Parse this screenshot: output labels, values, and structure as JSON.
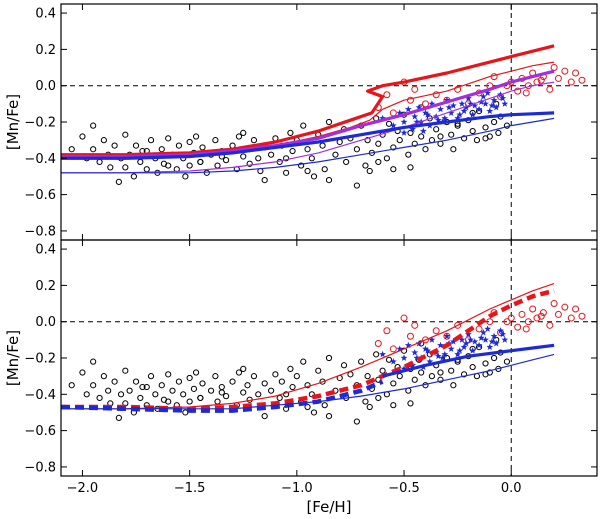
{
  "chart_data": [
    {
      "type": "scatter",
      "panel": "top",
      "ylabel": "[Mn/Fe]",
      "xlim": [
        -2.1,
        0.4
      ],
      "ylim": [
        -0.85,
        0.45
      ],
      "yticks": [
        0.4,
        0.2,
        0.0,
        -0.2,
        -0.4,
        -0.6,
        -0.8
      ],
      "ytick_labels": [
        "0.4",
        "0.2",
        "0.0",
        "−0.2",
        "−0.4",
        "−0.6",
        "−0.8"
      ],
      "reference_lines": {
        "y": 0.0,
        "x": 0.0
      },
      "series": [
        {
          "name": "red model (thick)",
          "style": "solid-thick",
          "color": "#e8141a",
          "x": [
            -2.1,
            -1.8,
            -1.5,
            -1.3,
            -1.1,
            -0.9,
            -0.75,
            -0.65,
            -0.6,
            -0.67,
            -0.6,
            -0.5,
            -0.3,
            -0.1,
            0.0,
            0.1,
            0.2
          ],
          "y": [
            -0.38,
            -0.38,
            -0.37,
            -0.35,
            -0.31,
            -0.25,
            -0.19,
            -0.15,
            -0.06,
            -0.03,
            0.0,
            0.02,
            0.07,
            0.13,
            0.16,
            0.19,
            0.22
          ]
        },
        {
          "name": "red model (thin)",
          "style": "solid-thin",
          "color": "#e8141a",
          "x": [
            -2.1,
            -1.8,
            -1.5,
            -1.3,
            -1.1,
            -0.9,
            -0.75,
            -0.66,
            -0.6,
            -0.5,
            -0.3,
            -0.1,
            0.0,
            0.1,
            0.2
          ],
          "y": [
            -0.39,
            -0.39,
            -0.38,
            -0.36,
            -0.33,
            -0.28,
            -0.23,
            -0.19,
            -0.13,
            -0.08,
            -0.03,
            0.05,
            0.08,
            0.11,
            0.13
          ]
        },
        {
          "name": "purple model (thick)",
          "style": "solid-thick",
          "color": "#a22ee0",
          "x": [
            -2.1,
            -1.8,
            -1.5,
            -1.3,
            -1.1,
            -0.9,
            -0.7,
            -0.5,
            -0.3,
            -0.1,
            0.0,
            0.1,
            0.2
          ],
          "y": [
            -0.39,
            -0.39,
            -0.38,
            -0.36,
            -0.33,
            -0.29,
            -0.22,
            -0.16,
            -0.09,
            -0.02,
            0.02,
            0.05,
            0.08
          ]
        },
        {
          "name": "purple model (thin)",
          "style": "solid-thin",
          "color": "#a22ee0",
          "x": [
            -2.1,
            -1.8,
            -1.5,
            -1.3,
            -1.1,
            -0.9,
            -0.7,
            -0.5,
            -0.3,
            -0.1,
            0.0,
            0.1,
            0.2
          ],
          "y": [
            -0.48,
            -0.48,
            -0.47,
            -0.45,
            -0.42,
            -0.37,
            -0.3,
            -0.23,
            -0.15,
            -0.07,
            -0.03,
            0.0,
            0.02
          ]
        },
        {
          "name": "blue model (thick)",
          "style": "solid-thick",
          "color": "#1c2ad8",
          "x": [
            -2.1,
            -1.8,
            -1.5,
            -1.3,
            -1.1,
            -0.9,
            -0.7,
            -0.5,
            -0.3,
            -0.1,
            0.0,
            0.1,
            0.2
          ],
          "y": [
            -0.4,
            -0.4,
            -0.39,
            -0.37,
            -0.34,
            -0.31,
            -0.27,
            -0.23,
            -0.2,
            -0.17,
            -0.16,
            -0.155,
            -0.15
          ]
        },
        {
          "name": "blue model (thin)",
          "style": "solid-thin",
          "color": "#1c2ad8",
          "x": [
            -2.1,
            -1.8,
            -1.5,
            -1.3,
            -1.1,
            -0.9,
            -0.7,
            -0.5,
            -0.3,
            -0.1,
            0.0,
            0.1,
            0.2
          ],
          "y": [
            -0.48,
            -0.48,
            -0.48,
            -0.47,
            -0.45,
            -0.42,
            -0.38,
            -0.34,
            -0.3,
            -0.25,
            -0.22,
            -0.2,
            -0.18
          ]
        }
      ]
    },
    {
      "type": "scatter",
      "panel": "bottom",
      "ylabel": "[Mn/Fe]",
      "xlabel": "[Fe/H]",
      "xlim": [
        -2.1,
        0.4
      ],
      "ylim": [
        -0.85,
        0.45
      ],
      "xticks": [
        -2.0,
        -1.5,
        -1.0,
        -0.5,
        0.0
      ],
      "xtick_labels": [
        "−2.0",
        "−1.5",
        "−1.0",
        "−0.5",
        "0.0"
      ],
      "yticks": [
        0.4,
        0.2,
        0.0,
        -0.2,
        -0.4,
        -0.6,
        -0.8
      ],
      "ytick_labels": [
        "0.4",
        "0.2",
        "0.0",
        "−0.2",
        "−0.4",
        "−0.6",
        "−0.8"
      ],
      "reference_lines": {
        "y": 0.0,
        "x": 0.0
      },
      "series": [
        {
          "name": "red model (thin)",
          "style": "solid-thin",
          "color": "#e8141a",
          "x": [
            -2.1,
            -1.8,
            -1.5,
            -1.3,
            -1.1,
            -0.9,
            -0.7,
            -0.5,
            -0.3,
            -0.1,
            0.0,
            0.1,
            0.2
          ],
          "y": [
            -0.48,
            -0.48,
            -0.47,
            -0.45,
            -0.41,
            -0.34,
            -0.25,
            -0.15,
            -0.05,
            0.07,
            0.12,
            0.17,
            0.21
          ]
        },
        {
          "name": "red model (dashed)",
          "style": "dashed-thick",
          "color": "#e8141a",
          "x": [
            -2.1,
            -1.8,
            -1.5,
            -1.3,
            -1.1,
            -0.9,
            -0.7,
            -0.5,
            -0.3,
            -0.1,
            0.0,
            0.1,
            0.2
          ],
          "y": [
            -0.47,
            -0.47,
            -0.48,
            -0.47,
            -0.45,
            -0.41,
            -0.35,
            -0.25,
            -0.13,
            0.03,
            0.09,
            0.14,
            0.17
          ]
        },
        {
          "name": "blue model (thick)",
          "style": "solid-thick",
          "color": "#1c2ad8",
          "x": [
            -0.6,
            -0.4,
            -0.2,
            0.0,
            0.1,
            0.2
          ],
          "y": [
            -0.3,
            -0.24,
            -0.19,
            -0.16,
            -0.145,
            -0.13
          ]
        },
        {
          "name": "blue model (dashed)",
          "style": "dashed-thick",
          "color": "#1c2ad8",
          "x": [
            -2.1,
            -1.8,
            -1.5,
            -1.3,
            -1.1,
            -0.9,
            -0.7,
            -0.6
          ],
          "y": [
            -0.47,
            -0.48,
            -0.49,
            -0.49,
            -0.47,
            -0.44,
            -0.38,
            -0.33
          ]
        },
        {
          "name": "blue model (thin)",
          "style": "solid-thin",
          "color": "#1c2ad8",
          "x": [
            -2.1,
            -1.8,
            -1.5,
            -1.3,
            -1.1,
            -0.9,
            -0.7,
            -0.5,
            -0.3,
            -0.1,
            0.0,
            0.1,
            0.2
          ],
          "y": [
            -0.48,
            -0.48,
            -0.48,
            -0.48,
            -0.46,
            -0.44,
            -0.41,
            -0.37,
            -0.32,
            -0.27,
            -0.24,
            -0.21,
            -0.18
          ]
        }
      ]
    }
  ],
  "scatter_points": {
    "black_circles": {
      "color": "#000000",
      "marker": "open-circle",
      "x": [
        -2.05,
        -2.0,
        -1.98,
        -1.95,
        -1.92,
        -1.9,
        -1.88,
        -1.87,
        -1.85,
        -1.82,
        -1.8,
        -1.8,
        -1.78,
        -1.76,
        -1.75,
        -1.73,
        -1.72,
        -1.7,
        -1.68,
        -1.66,
        -1.65,
        -1.63,
        -1.62,
        -1.6,
        -1.58,
        -1.56,
        -1.55,
        -1.53,
        -1.52,
        -1.5,
        -1.5,
        -1.48,
        -1.47,
        -1.45,
        -1.44,
        -1.42,
        -1.4,
        -1.38,
        -1.37,
        -1.35,
        -1.33,
        -1.3,
        -1.28,
        -1.27,
        -1.25,
        -1.23,
        -1.22,
        -1.2,
        -1.18,
        -1.17,
        -1.15,
        -1.12,
        -1.1,
        -1.08,
        -1.07,
        -1.05,
        -1.03,
        -1.02,
        -1.0,
        -0.98,
        -0.97,
        -0.95,
        -0.93,
        -0.9,
        -0.88,
        -0.87,
        -0.85,
        -0.82,
        -0.8,
        -0.78,
        -0.77,
        -0.75,
        -0.72,
        -0.7,
        -0.68,
        -0.67,
        -0.65,
        -0.63,
        -0.62,
        -0.6,
        -0.58,
        -0.57,
        -0.55,
        -0.53,
        -0.52,
        -0.5,
        -0.48,
        -0.47,
        -0.45,
        -0.43,
        -0.42,
        -0.4,
        -0.38,
        -0.37,
        -0.35,
        -0.33,
        -0.3,
        -0.28,
        -0.27,
        -0.25,
        -0.22,
        -0.2,
        -0.18,
        -0.16,
        -0.15,
        -0.12,
        -0.1,
        -0.08,
        -0.06,
        -0.05,
        -0.02,
        -1.95,
        -1.7,
        -1.45,
        -1.25,
        -1.15,
        -0.95,
        -0.85,
        -0.72,
        -0.62,
        -0.55,
        -0.42,
        -0.33,
        -0.18,
        -0.07,
        -1.83,
        -1.6,
        -1.35,
        -1.05,
        -0.92,
        -0.66,
        -0.47,
        -0.25,
        -0.12
      ],
      "y": [
        -0.35,
        -0.28,
        -0.4,
        -0.35,
        -0.42,
        -0.3,
        -0.38,
        -0.45,
        -0.33,
        -0.4,
        -0.27,
        -0.45,
        -0.38,
        -0.5,
        -0.33,
        -0.42,
        -0.36,
        -0.46,
        -0.3,
        -0.4,
        -0.48,
        -0.35,
        -0.43,
        -0.29,
        -0.38,
        -0.46,
        -0.33,
        -0.4,
        -0.5,
        -0.31,
        -0.44,
        -0.37,
        -0.28,
        -0.42,
        -0.34,
        -0.48,
        -0.38,
        -0.3,
        -0.44,
        -0.36,
        -0.41,
        -0.33,
        -0.46,
        -0.28,
        -0.39,
        -0.35,
        -0.43,
        -0.3,
        -0.4,
        -0.47,
        -0.34,
        -0.38,
        -0.29,
        -0.42,
        -0.33,
        -0.4,
        -0.26,
        -0.36,
        -0.3,
        -0.44,
        -0.22,
        -0.35,
        -0.4,
        -0.27,
        -0.33,
        -0.46,
        -0.2,
        -0.38,
        -0.31,
        -0.24,
        -0.42,
        -0.29,
        -0.35,
        -0.22,
        -0.44,
        -0.3,
        -0.37,
        -0.18,
        -0.32,
        -0.27,
        -0.4,
        -0.21,
        -0.34,
        -0.25,
        -0.3,
        -0.16,
        -0.38,
        -0.26,
        -0.32,
        -0.21,
        -0.28,
        -0.35,
        -0.18,
        -0.3,
        -0.24,
        -0.32,
        -0.2,
        -0.27,
        -0.35,
        -0.22,
        -0.29,
        -0.19,
        -0.25,
        -0.3,
        -0.14,
        -0.23,
        -0.28,
        -0.2,
        -0.26,
        -0.17,
        -0.22,
        -0.22,
        -0.36,
        -0.42,
        -0.26,
        -0.52,
        -0.47,
        -0.52,
        -0.55,
        -0.42,
        -0.46,
        -0.12,
        -0.28,
        -0.15,
        -0.1,
        -0.53,
        -0.44,
        -0.39,
        -0.48,
        -0.5,
        -0.47,
        -0.45,
        -0.21,
        -0.29
      ]
    },
    "red_circles": {
      "color": "#e8141a",
      "marker": "open-circle",
      "x": [
        -0.62,
        -0.58,
        -0.55,
        -0.5,
        -0.47,
        -0.45,
        -0.4,
        -0.35,
        -0.3,
        -0.25,
        -0.2,
        -0.15,
        -0.1,
        -0.05,
        0.0,
        0.03,
        0.05,
        0.08,
        0.1,
        0.12,
        0.15,
        0.18,
        0.2,
        0.22,
        0.25,
        0.28,
        0.3,
        0.33,
        -0.08,
        -0.02,
        0.07,
        0.14
      ],
      "y": [
        -0.12,
        -0.05,
        -0.15,
        0.02,
        -0.08,
        -0.02,
        -0.1,
        -0.05,
        -0.08,
        -0.02,
        -0.1,
        -0.04,
        0.0,
        -0.06,
        0.02,
        -0.03,
        0.04,
        0.0,
        0.07,
        0.02,
        0.05,
        -0.02,
        0.1,
        0.04,
        0.08,
        0.02,
        0.07,
        0.03,
        0.05,
        0.0,
        -0.04,
        0.03
      ]
    },
    "blue_stars": {
      "color": "#1c2ad8",
      "marker": "star",
      "x": [
        -0.6,
        -0.55,
        -0.52,
        -0.5,
        -0.48,
        -0.46,
        -0.45,
        -0.43,
        -0.42,
        -0.4,
        -0.38,
        -0.37,
        -0.35,
        -0.33,
        -0.32,
        -0.3,
        -0.28,
        -0.27,
        -0.25,
        -0.23,
        -0.22,
        -0.2,
        -0.18,
        -0.17,
        -0.15,
        -0.13,
        -0.12,
        -0.1,
        -0.08,
        -0.07,
        -0.05,
        -0.03,
        -0.5,
        -0.44,
        -0.39,
        -0.34,
        -0.29,
        -0.24,
        -0.19,
        -0.14,
        -0.09,
        -0.04,
        -0.41,
        -0.31,
        -0.21,
        -0.11
      ],
      "y": [
        -0.18,
        -0.22,
        -0.15,
        -0.2,
        -0.13,
        -0.24,
        -0.17,
        -0.12,
        -0.2,
        -0.15,
        -0.22,
        -0.1,
        -0.17,
        -0.13,
        -0.2,
        -0.08,
        -0.15,
        -0.11,
        -0.18,
        -0.1,
        -0.14,
        -0.07,
        -0.16,
        -0.11,
        -0.13,
        -0.06,
        -0.1,
        -0.14,
        -0.08,
        -0.12,
        -0.05,
        -0.1,
        -0.26,
        -0.2,
        -0.16,
        -0.19,
        -0.12,
        -0.16,
        -0.1,
        -0.09,
        -0.11,
        -0.07,
        -0.25,
        -0.18,
        -0.12,
        -0.04
      ]
    }
  },
  "colors": {
    "axis": "#000000",
    "red": "#e8141a",
    "purple": "#a22ee0",
    "blue": "#1c2ad8",
    "black_points": "#000000"
  }
}
